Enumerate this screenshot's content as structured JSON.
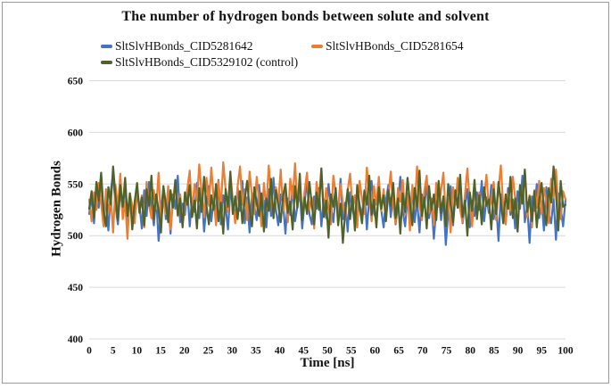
{
  "chart_data": {
    "type": "line",
    "title": "The number of hydrogen bonds between solute and solvent",
    "xlabel": "Time [ns]",
    "ylabel": "Hydrogen Bonds",
    "xlim": [
      0,
      100
    ],
    "ylim": [
      400,
      650
    ],
    "x_ticks": [
      0,
      5,
      10,
      15,
      20,
      25,
      30,
      35,
      40,
      45,
      50,
      55,
      60,
      65,
      70,
      75,
      80,
      85,
      90,
      95,
      100
    ],
    "y_ticks": [
      400,
      450,
      500,
      550,
      600,
      650
    ],
    "grid": "horizontal-only",
    "grid_color": "#d9d9d9",
    "text_color": "#111111",
    "legend_position": "top-left-two-columns",
    "series": [
      {
        "name": "SltSlvHBonds_CID5281642",
        "color": "#4472C4",
        "values": [
          521,
          538,
          512,
          549,
          527,
          556,
          518,
          534,
          505,
          543,
          560,
          529,
          511,
          546,
          522,
          553,
          508,
          537,
          525,
          515,
          541,
          530,
          507,
          544,
          519,
          552,
          528,
          510,
          538,
          495,
          524,
          547,
          516,
          533,
          502,
          540,
          526,
          558,
          513,
          531,
          520,
          545,
          509,
          536,
          523,
          551,
          517,
          542,
          504,
          529,
          548,
          514,
          535,
          521,
          554,
          511,
          539,
          527,
          506,
          544,
          530,
          518,
          547,
          524,
          553,
          512,
          537,
          503,
          541,
          528,
          515,
          549,
          522,
          534,
          508,
          545,
          519,
          556,
          525,
          510,
          540,
          531,
          502,
          536,
          520,
          548,
          514,
          529,
          543,
          507,
          533,
          552,
          521,
          511,
          538,
          526,
          546,
          509,
          535,
          517,
          550,
          528,
          513,
          539,
          523,
          555,
          516,
          532,
          504,
          542,
          527,
          512,
          547,
          530,
          519,
          544,
          506,
          537,
          553,
          522,
          515,
          541,
          525,
          508,
          534,
          549,
          518,
          543,
          511,
          530,
          557,
          524,
          509,
          538,
          521,
          546,
          513,
          535,
          503,
          540,
          528,
          551,
          517,
          532,
          497,
          526,
          544,
          515,
          536,
          491,
          523,
          548,
          510,
          539,
          527,
          554,
          512,
          530,
          545,
          508,
          534,
          519,
          542,
          525,
          553,
          514,
          537,
          522,
          549,
          516,
          531,
          495,
          540,
          528,
          511,
          546,
          520,
          535,
          507,
          543,
          526,
          558,
          513,
          529,
          493,
          538,
          524,
          550,
          517,
          533,
          505,
          547,
          521,
          512,
          536,
          496,
          541,
          527,
          509,
          535
        ]
      },
      {
        "name": "SltSlvHBonds_CID5281654",
        "color": "#ED7D31",
        "values": [
          535,
          514,
          542,
          525,
          551,
          531,
          509,
          545,
          522,
          538,
          503,
          549,
          527,
          560,
          516,
          533,
          497,
          541,
          529,
          512,
          547,
          524,
          539,
          508,
          552,
          530,
          517,
          544,
          526,
          561,
          513,
          535,
          521,
          548,
          506,
          532,
          554,
          519,
          540,
          511,
          528,
          545,
          563,
          522,
          550,
          534,
          569,
          541,
          518,
          556,
          529,
          566,
          537,
          510,
          553,
          527,
          571,
          544,
          523,
          559,
          535,
          512,
          548,
          567,
          530,
          545,
          515,
          562,
          538,
          521,
          557,
          533,
          509,
          551,
          526,
          568,
          540,
          517,
          547,
          531,
          564,
          524,
          542,
          513,
          555,
          536,
          570,
          528,
          549,
          519,
          543,
          561,
          525,
          537,
          507,
          552,
          534,
          565,
          520,
          546,
          529,
          511,
          558,
          541,
          523,
          550,
          532,
          516,
          544,
          560,
          527,
          539,
          508,
          553,
          535,
          521,
          566,
          542,
          514,
          548,
          530,
          557,
          524,
          545,
          517,
          538,
          562,
          529,
          512,
          546,
          533,
          554,
          520,
          541,
          505,
          549,
          526,
          567,
          531,
          515,
          543,
          558,
          522,
          536,
          510,
          551,
          528,
          544,
          561,
          519,
          535,
          503,
          547,
          530,
          556,
          525,
          513,
          540,
          565,
          532,
          509,
          550,
          523,
          542,
          517,
          538,
          559,
          526,
          534,
          552,
          515,
          545,
          568,
          528,
          511,
          541,
          524,
          557,
          536,
          504,
          548,
          531,
          563,
          518,
          539,
          508,
          544,
          527,
          553,
          521,
          546,
          533,
          512,
          555,
          537,
          564,
          529,
          516,
          543,
          535
        ]
      },
      {
        "name": "SltSlvHBonds_CID5329102 (control)",
        "color": "#4F6228",
        "values": [
          526,
          543,
          517,
          552,
          534,
          561,
          524,
          509,
          547,
          530,
          567,
          538,
          515,
          549,
          528,
          556,
          519,
          541,
          506,
          533,
          551,
          522,
          537,
          510,
          545,
          529,
          558,
          516,
          540,
          525,
          503,
          548,
          531,
          513,
          544,
          527,
          554,
          520,
          536,
          508,
          542,
          530,
          549,
          518,
          534,
          507,
          546,
          523,
          557,
          529,
          511,
          539,
          525,
          550,
          514,
          532,
          502,
          545,
          528,
          562,
          521,
          538,
          516,
          543,
          512,
          535,
          553,
          526,
          509,
          547,
          531,
          519,
          541,
          504,
          536,
          524,
          555,
          517,
          544,
          529,
          513,
          539,
          550,
          522,
          533,
          506,
          548,
          527,
          560,
          515,
          537,
          521,
          552,
          530,
          511,
          542,
          525,
          565,
          518,
          534,
          498,
          540,
          528,
          546,
          510,
          531,
          493,
          524,
          545,
          516,
          538,
          505,
          549,
          527,
          512,
          543,
          530,
          558,
          520,
          535,
          508,
          547,
          526,
          539,
          514,
          544,
          529,
          551,
          517,
          536,
          502,
          541,
          523,
          556,
          532,
          510,
          546,
          528,
          563,
          519,
          537,
          507,
          548,
          525,
          540,
          515,
          553,
          522,
          538,
          509,
          550,
          530,
          513,
          544,
          527,
          559,
          518,
          534,
          500,
          542,
          524,
          554,
          516,
          539,
          511,
          547,
          529,
          535,
          506,
          545,
          521,
          552,
          533,
          512,
          540,
          526,
          557,
          517,
          536,
          504,
          549,
          531,
          564,
          523,
          538,
          514,
          543,
          508,
          534,
          551,
          525,
          510,
          546,
          532,
          567,
          541,
          505,
          553,
          528,
          530
        ]
      }
    ]
  }
}
